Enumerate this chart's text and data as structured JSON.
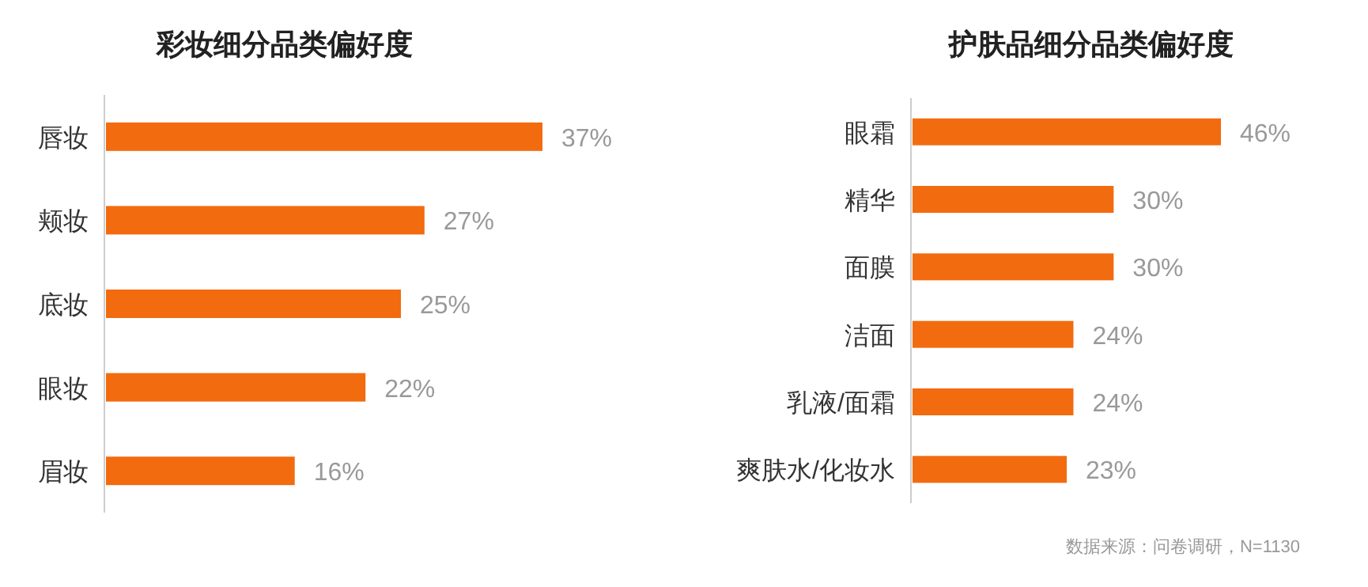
{
  "chart_data": [
    {
      "type": "bar",
      "orientation": "horizontal",
      "title": "彩妆细分品类偏好度",
      "categories": [
        "唇妆",
        "颊妆",
        "底妆",
        "眼妆",
        "眉妆"
      ],
      "values": [
        37,
        27,
        25,
        22,
        16
      ],
      "value_labels": [
        "37%",
        "27%",
        "25%",
        "22%",
        "16%"
      ],
      "color": "#f26b0f"
    },
    {
      "type": "bar",
      "orientation": "horizontal",
      "title": "护肤品细分品类偏好度",
      "categories": [
        "眼霜",
        "精华",
        "面膜",
        "洁面",
        "乳液/面霜",
        "爽肤水/化妆水"
      ],
      "values": [
        46,
        30,
        30,
        24,
        24,
        23
      ],
      "value_labels": [
        "46%",
        "30%",
        "30%",
        "24%",
        "24%",
        "23%"
      ],
      "color": "#f26b0f",
      "annotations": [
        "数据来源：问卷调研，N=1130"
      ]
    }
  ]
}
